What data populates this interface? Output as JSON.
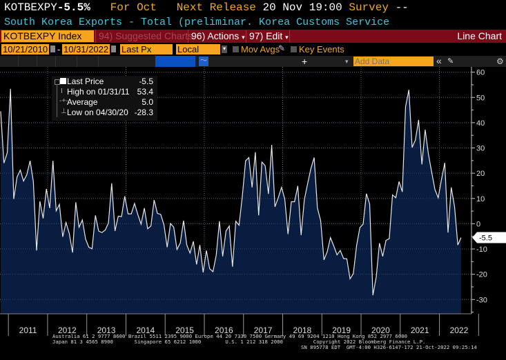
{
  "header": {
    "ticker": "KOTBEXPY",
    "last_change": "-5.5%",
    "for_label": "For",
    "period": "Oct",
    "next_release_label": "Next Release",
    "next_release": "20 Nov 19:00",
    "survey_label": "Survey",
    "survey_value": "--",
    "description": "South Korea Exports - Total (preliminar. Korea Customs Service"
  },
  "toolbar": {
    "security": "KOTBEXPY Index",
    "suggested": "94) Suggested Charts",
    "actions": "96) Actions",
    "edit": "97) Edit",
    "chart_type": "Line Chart",
    "start_date": "10/21/2010",
    "date_sep": "-",
    "end_date": "10/31/2022",
    "field": "Last Px",
    "currency": "Local CCY",
    "mov_avgs": "Mov Avgs",
    "key_events": "Key Events",
    "plus": "+",
    "add_data_placeholder": "Add Data",
    "collapse": "«"
  },
  "legend": {
    "last_label": "Last Price",
    "last_value": "-5.5",
    "high_label": "High on 01/31/11",
    "high_value": "53.4",
    "avg_label": "Average",
    "avg_value": "5.0",
    "low_label": "Low on 04/30/20",
    "low_value": "-28.3"
  },
  "footer": {
    "line1": "Australia 61 2 9777 8600 Brazil 5511 2395 9000 Europe 44 20 7330 7500 Germany 49 69 9204 1210 Hong Kong 852 2977 6000",
    "line2": "Japan 81 3 4565 8900       Singapore 65 6212 1000        U.S. 1 212 318 2000          Copyright 2022 Bloomberg Finance L.P.",
    "line3": "SN 895778 EDT  GMT-4:00 H326-6147-172 21-Oct-2022 09:25:14"
  },
  "colors": {
    "line": "#e8e8e8",
    "fill": "#0a1f44",
    "accent": "#f7a51f",
    "bar": "#7d0a18",
    "cyan": "#3cc8e0"
  },
  "chart_data": {
    "type": "area",
    "start": "2010-10",
    "end": "2022-10",
    "frequency": "monthly",
    "ylim": [
      -35,
      62
    ],
    "yticks": [
      -30,
      -20,
      -10,
      0,
      10,
      20,
      30,
      40,
      50,
      60
    ],
    "xticks": [
      "2011",
      "2012",
      "2013",
      "2014",
      "2015",
      "2016",
      "2017",
      "2018",
      "2019",
      "2020",
      "2021",
      "2022"
    ],
    "last_label": "-5.5",
    "grid": true,
    "legend": "top-left",
    "values": [
      44.5,
      24.0,
      28.1,
      53.4,
      9.8,
      18.5,
      21.2,
      16.9,
      19.4,
      24.9,
      16.7,
      -10.6,
      8.9,
      2.1,
      13.8,
      6.2,
      24.9,
      5.1,
      7.7,
      -5.2,
      0.5,
      -3.8,
      -11.4,
      8.5,
      -1.4,
      1.5,
      -6.1,
      -9.3,
      -9.9,
      3.3,
      -2.9,
      -3.5,
      -2.5,
      0.3,
      16.0,
      -2.9,
      3.0,
      2.8,
      10.9,
      3.9,
      3.9,
      8.0,
      3.6,
      -0.2,
      6.2,
      -2.0,
      -0.9,
      9.4,
      4.1,
      3.7,
      -0.4,
      -9.3,
      0.1,
      -1.4,
      -10.2,
      -7.6,
      1.2,
      -8.4,
      -11.6,
      -7.0,
      -16.1,
      -8.4,
      -19.3,
      -10.6,
      -17.8,
      -19.0,
      -12.5,
      1.0,
      -12.9,
      -2.9,
      -0.9,
      -17.0,
      1.0,
      -0.6,
      10.8,
      24.9,
      26.2,
      14.4,
      28.3,
      3.3,
      24.4,
      23.0,
      11.8,
      31.2,
      6.7,
      10.3,
      14.4,
      9.8,
      -4.1,
      8.7,
      8.7,
      15.0,
      -4.5,
      9.6,
      15.8,
      21.9,
      26.2,
      6.2,
      1.2,
      -14.3,
      -11.1,
      -5.5,
      -8.8,
      -12.3,
      -10.6,
      -13.8,
      -13.9,
      -21.8,
      -19.8,
      -8.6,
      -1.5,
      -0.2,
      11.9,
      7.8,
      -28.3,
      -21.1,
      -7.7,
      -12.9,
      -6.6,
      -5.9,
      11.4,
      10.3,
      16.7,
      12.6,
      46.3,
      53.0,
      30.2,
      33.1,
      41.1,
      23.5,
      37.2,
      27.6,
      20.3,
      13.5,
      10.3,
      17.6,
      24.1,
      -3.5,
      14.4,
      6.7,
      -8.4,
      -5.5
    ]
  }
}
